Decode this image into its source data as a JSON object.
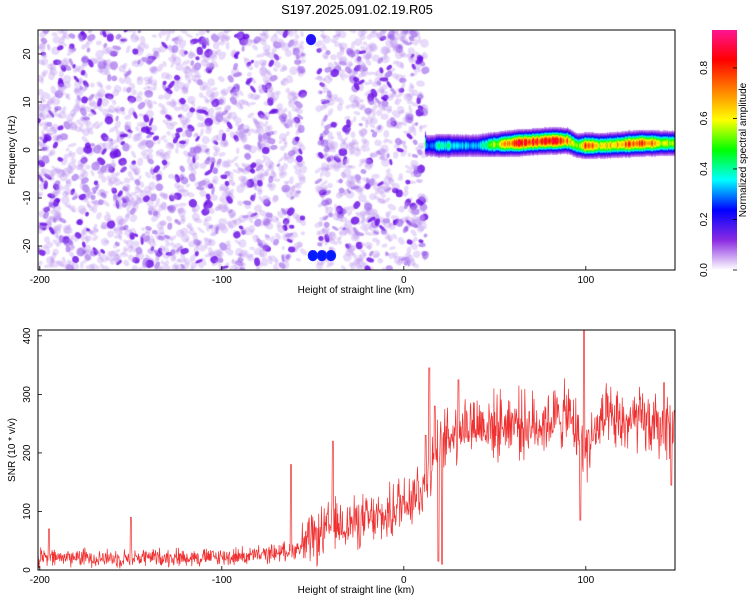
{
  "chart_data": [
    {
      "type": "heatmap",
      "title": "S197.2025.091.02.19.R05",
      "xlabel": "Height of straight line (km)",
      "ylabel": "Frequency (Hz)",
      "xlim": [
        -201,
        149
      ],
      "ylim": [
        -25,
        25
      ],
      "xticks": [
        -200,
        -100,
        0,
        100
      ],
      "yticks": [
        -20,
        -10,
        0,
        10,
        20
      ],
      "colorbar": {
        "label": "Normalized spectral amplitude",
        "range": [
          0,
          0.95
        ],
        "ticks": [
          0.0,
          0.2,
          0.4,
          0.6,
          0.8
        ],
        "tick_labels": [
          "0.0",
          "0.2",
          "0.4",
          "0.6",
          "0.8"
        ],
        "colormap": [
          "#ffffff",
          "#8a2be2",
          "#0000ff",
          "#00ffff",
          "#00ff00",
          "#ffff00",
          "#ff8000",
          "#ff0000",
          "#ff1493"
        ]
      },
      "noise_region": {
        "x_range": [
          -201,
          12
        ],
        "gap_x_range": [
          -55,
          -47
        ],
        "level": 0.07
      },
      "signal_band": {
        "x": [
          12,
          20,
          40,
          60,
          80,
          90,
          95,
          100,
          110,
          130,
          149
        ],
        "frequency": [
          1,
          1,
          1,
          1.5,
          2,
          2,
          1,
          1,
          1,
          1.5,
          1.5
        ],
        "amplitude": [
          0.25,
          0.4,
          0.3,
          0.8,
          0.85,
          0.7,
          0.5,
          0.75,
          0.6,
          0.8,
          0.5
        ]
      },
      "spots": [
        {
          "x": -50,
          "y": -22,
          "value": 0.25
        },
        {
          "x": -45,
          "y": -22,
          "value": 0.25
        },
        {
          "x": -40,
          "y": -22,
          "value": 0.25
        },
        {
          "x": -51,
          "y": 23,
          "value": 0.2
        }
      ]
    },
    {
      "type": "line",
      "title": "",
      "xlabel": "Height of straight line (km)",
      "ylabel": "SNR (10 * v/v)",
      "xlim": [
        -201,
        149
      ],
      "ylim": [
        0,
        410
      ],
      "xticks": [
        -200,
        -100,
        0,
        100
      ],
      "yticks": [
        0,
        100,
        200,
        300,
        400
      ],
      "color": "#f03030",
      "series": [
        {
          "x": [
            -200,
            -180,
            -160,
            -140,
            -120,
            -100,
            -80,
            -60,
            -50,
            -40,
            -30,
            -20,
            -10,
            0,
            10,
            20,
            30,
            40,
            50,
            60,
            70,
            80,
            90,
            100,
            110,
            120,
            130,
            140,
            149
          ],
          "values": [
            20,
            22,
            20,
            22,
            22,
            22,
            25,
            35,
            50,
            75,
            80,
            85,
            90,
            120,
            140,
            210,
            245,
            250,
            245,
            255,
            245,
            255,
            265,
            210,
            255,
            250,
            255,
            240,
            250
          ]
        }
      ],
      "spikes": [
        {
          "x": -195,
          "y": 70
        },
        {
          "x": -150,
          "y": 90
        },
        {
          "x": -62,
          "y": 180
        },
        {
          "x": -39,
          "y": 220
        },
        {
          "x": 12,
          "y": 230
        },
        {
          "x": 14,
          "y": 345
        },
        {
          "x": 17,
          "y": 280
        },
        {
          "x": 19,
          "y": 15
        },
        {
          "x": 21,
          "y": 10
        },
        {
          "x": 30,
          "y": 325
        },
        {
          "x": 99,
          "y": 410
        },
        {
          "x": 97,
          "y": 85
        },
        {
          "x": 143,
          "y": 320
        },
        {
          "x": 147,
          "y": 145
        }
      ]
    }
  ]
}
